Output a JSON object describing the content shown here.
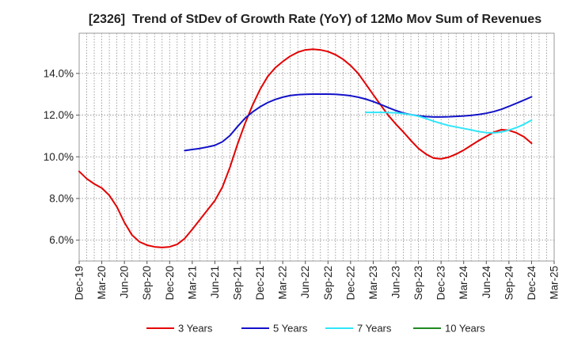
{
  "chart_data": {
    "type": "line",
    "title": "[2326]  Trend of StDev of Growth Rate (YoY) of 12Mo Mov Sum of Revenues",
    "xlabel": "",
    "ylabel": "",
    "xlim": [
      "Dec-19",
      "Mar-25"
    ],
    "ylim": [
      5.0,
      15.93
    ],
    "grid": true,
    "x_tick_labels": [
      "Dec-19",
      "Mar-20",
      "Jun-20",
      "Sep-20",
      "Dec-20",
      "Mar-21",
      "Jun-21",
      "Sep-21",
      "Dec-21",
      "Mar-22",
      "Jun-22",
      "Sep-22",
      "Dec-22",
      "Mar-23",
      "Jun-23",
      "Sep-23",
      "Dec-23",
      "Mar-24",
      "Jun-24",
      "Sep-24",
      "Dec-24",
      "Mar-25"
    ],
    "y_ticks": [
      6,
      8,
      10,
      12,
      14
    ],
    "y_tick_labels": [
      "6.0%",
      "8.0%",
      "10.0%",
      "12.0%",
      "14.0%"
    ],
    "series": [
      {
        "name": "3 Years",
        "color": "#e30000",
        "start": "Dec-19",
        "values": [
          9.3,
          8.95,
          8.7,
          8.5,
          8.15,
          7.6,
          6.85,
          6.25,
          5.92,
          5.76,
          5.68,
          5.65,
          5.68,
          5.8,
          6.08,
          6.52,
          6.98,
          7.44,
          7.9,
          8.55,
          9.5,
          10.6,
          11.6,
          12.48,
          13.24,
          13.85,
          14.27,
          14.57,
          14.83,
          15.02,
          15.13,
          15.16,
          15.13,
          15.05,
          14.9,
          14.68,
          14.38,
          14.0,
          13.5,
          12.98,
          12.48,
          11.99,
          11.57,
          11.19,
          10.78,
          10.4,
          10.13,
          9.94,
          9.9,
          9.98,
          10.13,
          10.32,
          10.55,
          10.78,
          10.98,
          11.18,
          11.3,
          11.27,
          11.15,
          10.96,
          10.65
        ]
      },
      {
        "name": "5 Years",
        "color": "#1212c8",
        "start": "Feb-21",
        "values": [
          10.3,
          10.35,
          10.4,
          10.47,
          10.55,
          10.72,
          11.02,
          11.45,
          11.85,
          12.15,
          12.4,
          12.6,
          12.75,
          12.86,
          12.94,
          12.98,
          13.0,
          13.01,
          13.01,
          13.01,
          13.0,
          12.97,
          12.93,
          12.86,
          12.77,
          12.65,
          12.51,
          12.36,
          12.22,
          12.1,
          12.02,
          11.97,
          11.93,
          11.91,
          11.91,
          11.92,
          11.94,
          11.96,
          11.99,
          12.03,
          12.09,
          12.17,
          12.28,
          12.42,
          12.57,
          12.72,
          12.88
        ]
      },
      {
        "name": "7 Years",
        "color": "#30e6fa",
        "start": "Feb-23",
        "values": [
          12.13,
          12.13,
          12.13,
          12.12,
          12.11,
          12.07,
          12.02,
          11.95,
          11.84,
          11.71,
          11.6,
          11.5,
          11.43,
          11.36,
          11.29,
          11.21,
          11.16,
          11.15,
          11.19,
          11.28,
          11.4,
          11.56,
          11.76
        ]
      },
      {
        "name": "10 Years",
        "color": "#1f8a1f",
        "start": null,
        "values": []
      }
    ]
  }
}
